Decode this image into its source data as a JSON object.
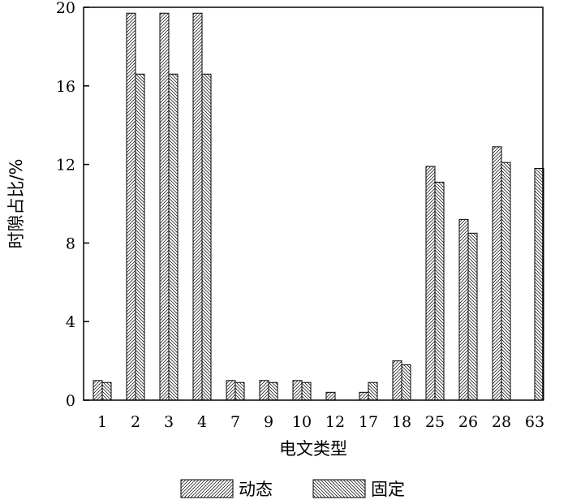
{
  "chart_data": {
    "type": "bar",
    "categories": [
      "1",
      "2",
      "3",
      "4",
      "7",
      "9",
      "10",
      "12",
      "17",
      "18",
      "25",
      "26",
      "28",
      "63"
    ],
    "series": [
      {
        "name": "动态",
        "values": [
          1.0,
          19.7,
          19.7,
          19.7,
          1.0,
          1.0,
          1.0,
          0.4,
          0.4,
          2.0,
          11.9,
          9.2,
          12.9,
          0.0
        ]
      },
      {
        "name": "固定",
        "values": [
          0.9,
          16.6,
          16.6,
          16.6,
          0.9,
          0.9,
          0.9,
          0.0,
          0.9,
          1.8,
          11.1,
          8.5,
          12.1,
          11.8
        ]
      }
    ],
    "xlabel": "电文类型",
    "ylabel": "时隙占比/%",
    "ylim": [
      0,
      20
    ],
    "yticks": [
      "0",
      "4",
      "8",
      "12",
      "16",
      "20"
    ],
    "legend_position": "bottom",
    "grid": false,
    "colors": {
      "bar_fill": "#ffffff",
      "hatch": "#000000"
    }
  }
}
